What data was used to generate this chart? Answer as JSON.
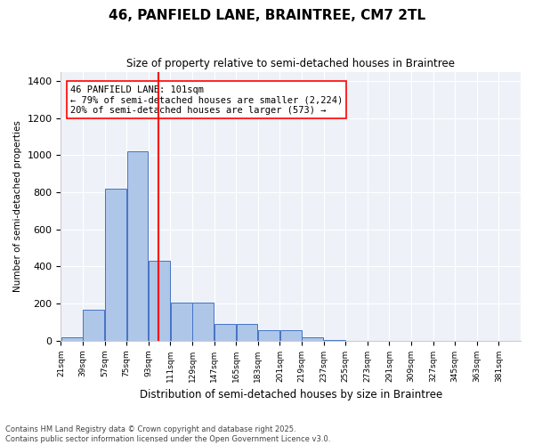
{
  "title_line1": "46, PANFIELD LANE, BRAINTREE, CM7 2TL",
  "title_line2": "Size of property relative to semi-detached houses in Braintree",
  "xlabel": "Distribution of semi-detached houses by size in Braintree",
  "ylabel": "Number of semi-detached properties",
  "bar_color": "#aec6e8",
  "bar_edge_color": "#4472c4",
  "background_color": "#eef2f8",
  "annotation_line1": "46 PANFIELD LANE: 101sqm",
  "annotation_line2": "← 79% of semi-detached houses are smaller (2,224)",
  "annotation_line3": "20% of semi-detached houses are larger (573) →",
  "vline_x": 101,
  "vline_color": "red",
  "bins": [
    21,
    39,
    57,
    75,
    93,
    111,
    129,
    147,
    165,
    183,
    201,
    219,
    237,
    255,
    273,
    291,
    309,
    327,
    345,
    363,
    381
  ],
  "bin_labels": [
    "21sqm",
    "39sqm",
    "57sqm",
    "75sqm",
    "93sqm",
    "111sqm",
    "129sqm",
    "147sqm",
    "165sqm",
    "183sqm",
    "201sqm",
    "219sqm",
    "237sqm",
    "255sqm",
    "273sqm",
    "291sqm",
    "309sqm",
    "327sqm",
    "345sqm",
    "363sqm",
    "381sqm"
  ],
  "bar_heights": [
    15,
    165,
    820,
    1020,
    430,
    205,
    205,
    90,
    90,
    55,
    55,
    15,
    5,
    0,
    0,
    0,
    0,
    0,
    0,
    0
  ],
  "ylim": [
    0,
    1450
  ],
  "yticks": [
    0,
    200,
    400,
    600,
    800,
    1000,
    1200,
    1400
  ],
  "footer_line1": "Contains HM Land Registry data © Crown copyright and database right 2025.",
  "footer_line2": "Contains public sector information licensed under the Open Government Licence v3.0."
}
